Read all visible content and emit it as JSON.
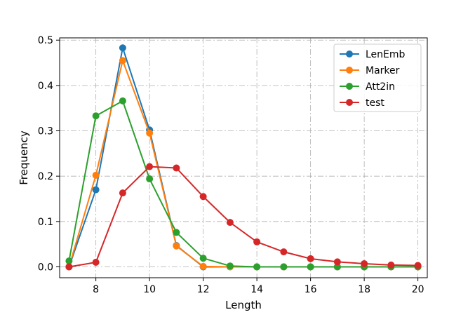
{
  "chart_data": {
    "type": "line",
    "title": "",
    "xlabel": "Length",
    "ylabel": "Frequency",
    "xlim": [
      6.65,
      20.35
    ],
    "ylim": [
      -0.024,
      0.505
    ],
    "xticks": [
      8,
      10,
      12,
      14,
      16,
      18,
      20
    ],
    "yticks": [
      0.0,
      0.1,
      0.2,
      0.3,
      0.4,
      0.5
    ],
    "ytick_labels": [
      "0.0",
      "0.1",
      "0.2",
      "0.3",
      "0.4",
      "0.5"
    ],
    "grid": true,
    "legend_position": "upper-right",
    "x": [
      7,
      8,
      9,
      10,
      11,
      12,
      13,
      14,
      15,
      16,
      17,
      18,
      19,
      20
    ],
    "series": [
      {
        "name": "LenEmb",
        "color": "#1f77b4",
        "values": [
          0.0,
          0.17,
          0.483,
          0.302,
          0.047,
          0.0,
          0.0,
          0.0,
          0.0,
          0.0,
          0.0,
          0.0,
          0.0,
          0.0
        ]
      },
      {
        "name": "Marker",
        "color": "#ff7f0e",
        "values": [
          0.0,
          0.202,
          0.455,
          0.295,
          0.046,
          0.001,
          0.0,
          0.0,
          0.0,
          0.0,
          0.0,
          0.0,
          0.0,
          0.0
        ]
      },
      {
        "name": "Att2in",
        "color": "#2ca02c",
        "values": [
          0.013,
          0.333,
          0.366,
          0.194,
          0.076,
          0.019,
          0.002,
          0.0,
          0.0,
          0.0,
          0.0,
          0.0,
          0.0,
          0.0
        ]
      },
      {
        "name": "test",
        "color": "#d62728",
        "values": [
          0.0,
          0.01,
          0.163,
          0.221,
          0.218,
          0.155,
          0.098,
          0.055,
          0.033,
          0.018,
          0.011,
          0.007,
          0.004,
          0.003
        ]
      }
    ]
  }
}
